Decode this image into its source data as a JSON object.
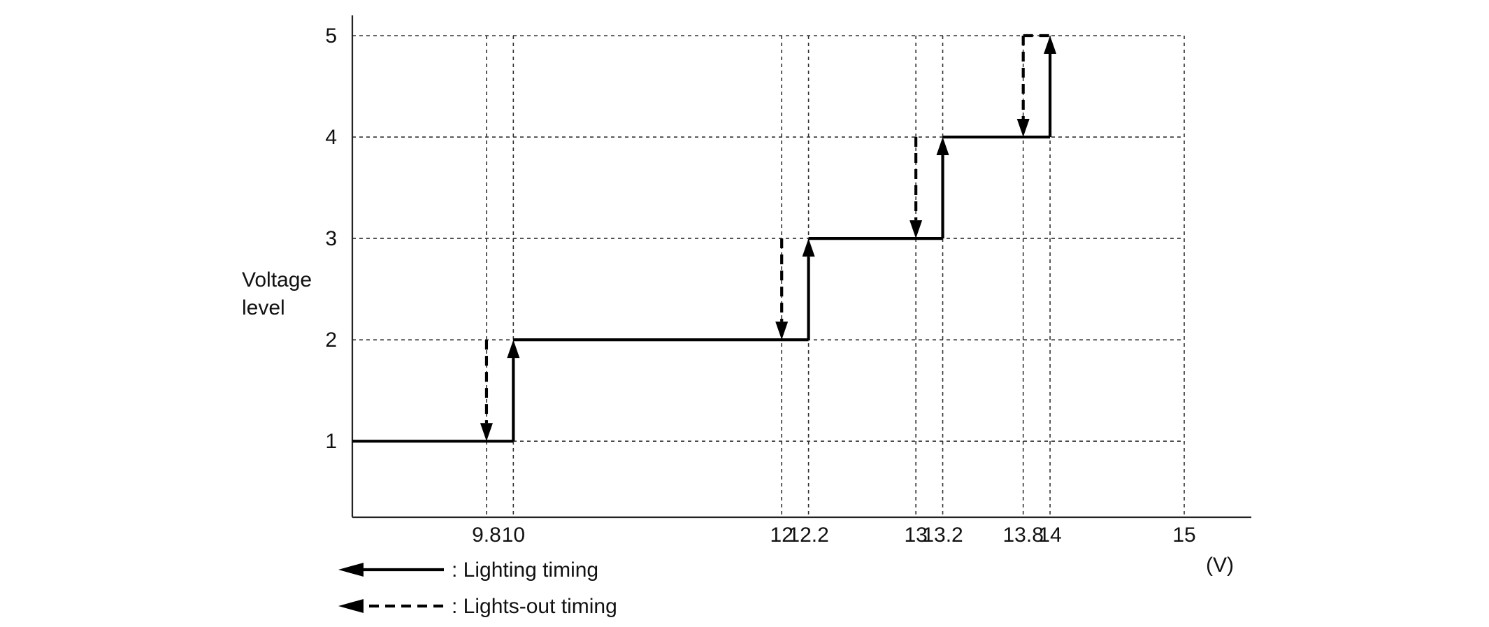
{
  "chart_data": {
    "type": "line",
    "title": "",
    "xlabel": "",
    "ylabel": "Voltage level",
    "xunit": "(V)",
    "xlim": [
      8.8,
      15.5
    ],
    "ylim": [
      0.25,
      5.2
    ],
    "grid": true,
    "x_ticks": [
      9.8,
      10,
      12,
      12.2,
      13,
      13.2,
      13.8,
      14,
      15
    ],
    "x_tick_labels": [
      "9.8",
      "10",
      "12",
      "12.2",
      "13",
      "13.2",
      "13.8",
      "14",
      "15"
    ],
    "y_ticks": [
      1,
      2,
      3,
      4,
      5
    ],
    "y_tick_labels": [
      "1",
      "2",
      "3",
      "4",
      "5"
    ],
    "series": [
      {
        "name": "Lighting timing",
        "style": "solid",
        "color": "#000000",
        "segments": [
          {
            "x": [
              8.8,
              10
            ],
            "y": [
              1,
              1
            ]
          },
          {
            "x": [
              10,
              12.2
            ],
            "y": [
              2,
              2
            ]
          },
          {
            "x": [
              12.2,
              13.2
            ],
            "y": [
              3,
              3
            ]
          },
          {
            "x": [
              13.2,
              14
            ],
            "y": [
              4,
              4
            ]
          }
        ],
        "transitions": [
          {
            "x": 10,
            "from": 1,
            "to": 2
          },
          {
            "x": 12.2,
            "from": 2,
            "to": 3
          },
          {
            "x": 13.2,
            "from": 3,
            "to": 4
          },
          {
            "x": 14,
            "from": 4,
            "to": 5
          }
        ]
      },
      {
        "name": "Lights-out timing",
        "style": "dashed",
        "color": "#000000",
        "transitions": [
          {
            "x": 9.8,
            "from": 2,
            "to": 1
          },
          {
            "x": 12,
            "from": 3,
            "to": 2
          },
          {
            "x": 13,
            "from": 4,
            "to": 3
          },
          {
            "x": 13.8,
            "from": 5,
            "to": 4
          }
        ]
      }
    ],
    "legend": {
      "placement": "bottom-left",
      "entries": [
        {
          "label": ": Lighting timing",
          "style": "solid"
        },
        {
          "label": ": Lights-out timing",
          "style": "dashed"
        }
      ]
    }
  }
}
